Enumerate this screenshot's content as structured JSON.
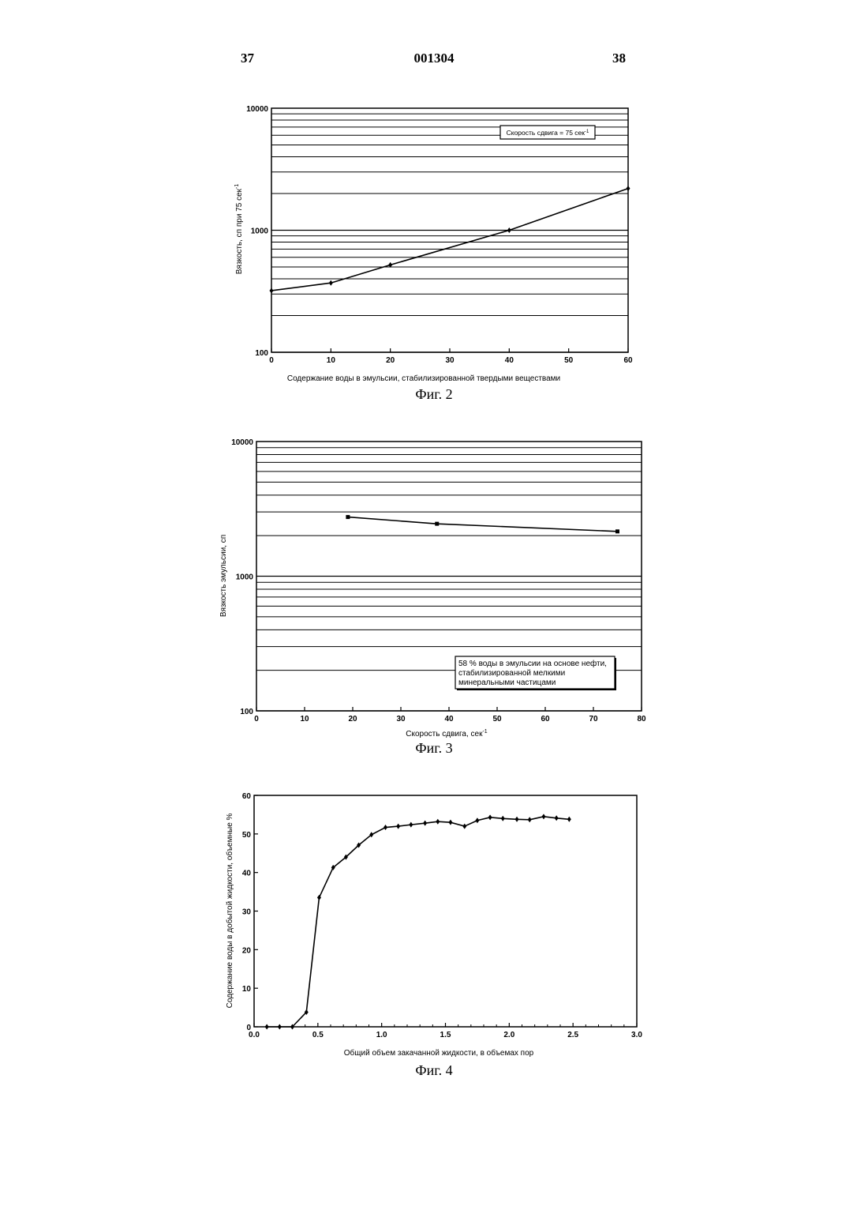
{
  "header": {
    "left": "37",
    "center": "001304",
    "right": "38"
  },
  "chart_data": [
    {
      "type": "line",
      "caption": "Фиг. 2",
      "xlabel": "Содержание воды в эмульсии, стабилизированной твердыми веществами",
      "ylabel": "Вязкость, сп при 75 сек",
      "ylabel_sup": "-1",
      "yscale": "log",
      "xlim": [
        0,
        60
      ],
      "ylim": [
        100,
        10000
      ],
      "xticks": [
        "0",
        "10",
        "20",
        "30",
        "40",
        "50",
        "60"
      ],
      "yticks": [
        "100",
        "1000",
        "10000"
      ],
      "annotation": {
        "text": "Скорость сдвига = 75 сек",
        "sup": "-1"
      },
      "series": [
        {
          "x": [
            0,
            10,
            20,
            40,
            60
          ],
          "y": [
            320,
            370,
            520,
            1000,
            2200
          ]
        }
      ]
    },
    {
      "type": "line",
      "caption": "Фиг. 3",
      "xlabel": "Скорость сдвига, сек",
      "xlabel_sup": "-1",
      "ylabel": "Вязкость эмульсии, сп",
      "yscale": "log",
      "xlim": [
        0,
        80
      ],
      "ylim": [
        100,
        10000
      ],
      "xticks": [
        "0",
        "10",
        "20",
        "30",
        "40",
        "50",
        "60",
        "70",
        "80"
      ],
      "yticks": [
        "100",
        "1000",
        "10000"
      ],
      "annotation": {
        "lines": [
          "58 % воды в эмульсии на основе нефти,",
          "стабилизированной мелкими",
          "минеральными частицами"
        ]
      },
      "series": [
        {
          "x": [
            19,
            37.5,
            75
          ],
          "y": [
            2750,
            2450,
            2150
          ]
        }
      ]
    },
    {
      "type": "line",
      "caption": "Фиг. 4",
      "xlabel": "Общий объем закачанной жидкости, в объемах пор",
      "ylabel": "Содержание воды в добытой жидкости, объемные %",
      "yscale": "linear",
      "xlim": [
        0,
        3
      ],
      "ylim": [
        0,
        60
      ],
      "xticks": [
        "0.0",
        "0.5",
        "1.0",
        "1.5",
        "2.0",
        "2.5",
        "3.0"
      ],
      "yticks": [
        "0",
        "10",
        "20",
        "30",
        "40",
        "50",
        "60"
      ],
      "series": [
        {
          "x": [
            0.1,
            0.2,
            0.3,
            0.41,
            0.51,
            0.62,
            0.72,
            0.82,
            0.92,
            1.03,
            1.13,
            1.23,
            1.34,
            1.44,
            1.54,
            1.65,
            1.75,
            1.85,
            1.95,
            2.06,
            2.16,
            2.27,
            2.37,
            2.47
          ],
          "y": [
            0,
            0,
            0,
            3.8,
            33.5,
            41.3,
            44,
            47.1,
            49.8,
            51.7,
            52,
            52.4,
            52.8,
            53.2,
            53,
            52,
            53.5,
            54.3,
            54,
            53.8,
            53.7,
            54.5,
            54.1,
            53.8
          ]
        }
      ]
    }
  ]
}
